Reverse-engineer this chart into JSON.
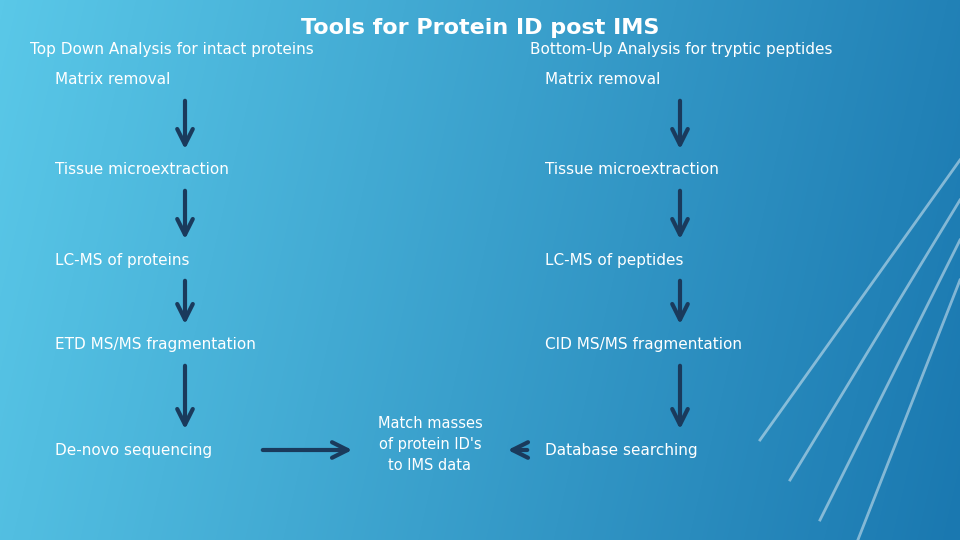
{
  "title": "Tools for Protein ID post IMS",
  "title_color": "white",
  "title_fontsize": 16,
  "bg_left": "#5ac8e8",
  "bg_right": "#1a78b0",
  "left_header": "Top Down Analysis for intact proteins",
  "right_header": "Bottom-Up Analysis for tryptic peptides",
  "header_color": "white",
  "header_fontsize": 11,
  "left_steps": [
    "Matrix removal",
    "Tissue microextraction",
    "LC-MS of proteins",
    "ETD MS/MS fragmentation",
    "De-novo sequencing"
  ],
  "right_steps": [
    "Matrix removal",
    "Tissue microextraction",
    "LC-MS of peptides",
    "CID MS/MS fragmentation",
    "Database searching"
  ],
  "center_text": "Match masses\nof protein ID's\nto IMS data",
  "step_color": "white",
  "step_fontsize": 11,
  "arrow_color": "#1a3a5c",
  "diag_line_color": "white",
  "diag_line_alpha": 0.45
}
